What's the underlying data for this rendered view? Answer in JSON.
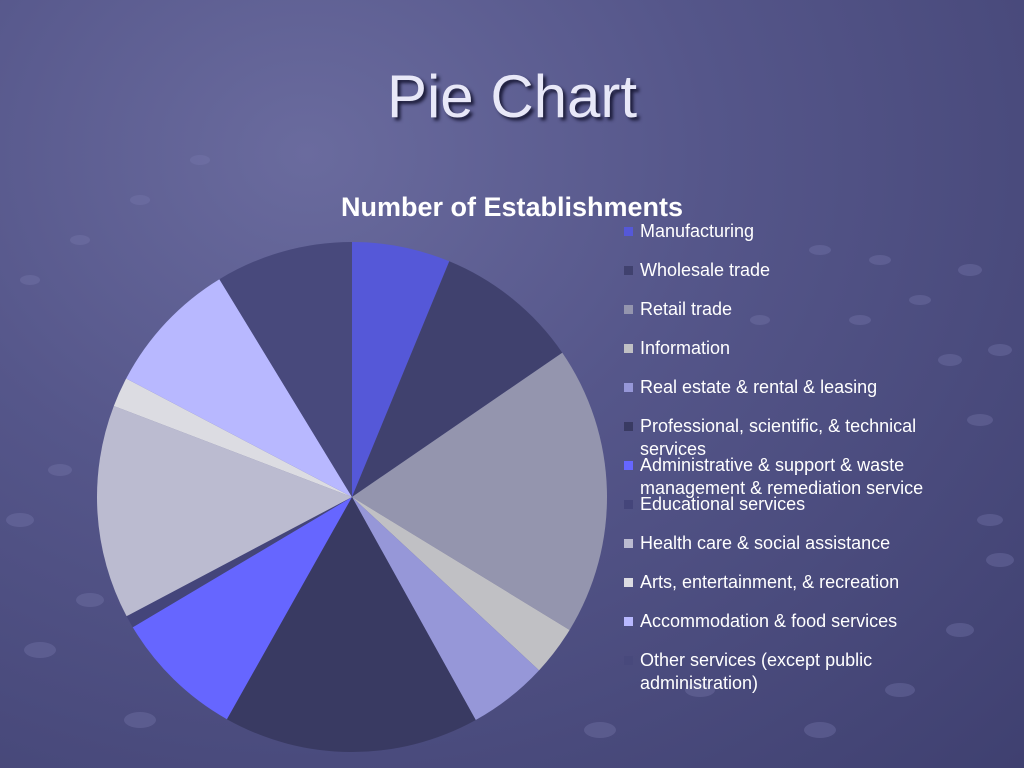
{
  "slide": {
    "title": "Pie Chart"
  },
  "chart_data": {
    "type": "pie",
    "title": "Number of Establishments",
    "legend_position": "right",
    "categories": [
      "Manufacturing",
      "Wholesale trade",
      "Retail trade",
      "Information",
      "Real estate & rental & leasing",
      "Professional, scientific, & technical services",
      "Administrative & support & waste management & remediation service",
      "Educational services",
      "Health care & social assistance",
      "Arts, entertainment, & recreation",
      "Accommodation & food services",
      "Other services (except public administration)"
    ],
    "values": [
      6.3,
      9.3,
      18.5,
      3.2,
      5.1,
      16.4,
      8.4,
      0.8,
      13.7,
      1.9,
      8.7,
      8.8
    ],
    "colors": [
      "#5558d8",
      "#40416e",
      "#9495ae",
      "#c0c0c4",
      "#9697d8",
      "#393a62",
      "#6666ff",
      "#44457a",
      "#bbbbd0",
      "#dcdce2",
      "#b8b8ff",
      "#48497c"
    ]
  }
}
